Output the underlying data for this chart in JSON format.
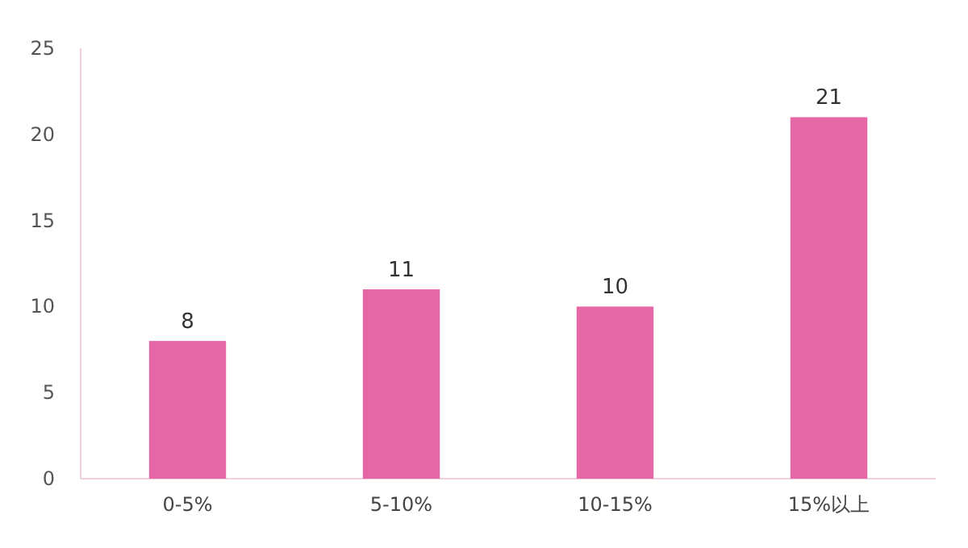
{
  "chart_data": {
    "type": "bar",
    "categories": [
      "0-5%",
      "5-10%",
      "10-15%",
      "15%以上"
    ],
    "values": [
      8,
      11,
      10,
      21
    ],
    "color": "#e667a6",
    "ylim": [
      0,
      25
    ],
    "yticks": [
      0,
      5,
      10,
      15,
      20,
      25
    ],
    "data_labels": true,
    "grid": false
  }
}
